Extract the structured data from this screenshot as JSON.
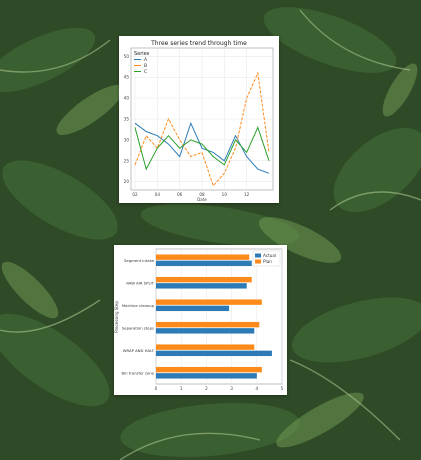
{
  "colors": {
    "blue": "#2c7bb6",
    "orange": "#ff8a1c",
    "green": "#2ca02c",
    "leaf_dark": "#23391d",
    "leaf_mid": "#3d6332",
    "leaf_light": "#6f9a57"
  },
  "chart_data": [
    {
      "type": "line",
      "title": "Three series trend through time",
      "xlabel": "Date",
      "ylabel": "",
      "x": [
        "02",
        "03",
        "04",
        "05",
        "06",
        "07",
        "08",
        "09",
        "10",
        "11",
        "12",
        "01",
        "02"
      ],
      "xticks": [
        "02",
        "04",
        "06",
        "08",
        "10",
        "12"
      ],
      "yticks": [
        20,
        25,
        30,
        35,
        40,
        45,
        50
      ],
      "ylim": [
        18,
        52
      ],
      "legend": {
        "title": "Series",
        "position": "top-left"
      },
      "series": [
        {
          "name": "A",
          "color": "#2c7bb6",
          "values": [
            34,
            32,
            31,
            29,
            26,
            34,
            28,
            27,
            25,
            31,
            26,
            23,
            22
          ]
        },
        {
          "name": "B",
          "color": "#ff8a1c",
          "values": [
            24,
            31,
            28,
            35,
            30,
            26,
            27,
            19,
            22,
            28,
            40,
            46,
            27
          ]
        },
        {
          "name": "C",
          "color": "#2ca02c",
          "values": [
            33,
            23,
            28,
            31,
            28,
            30,
            29,
            26,
            24,
            30,
            27,
            33,
            25
          ]
        }
      ],
      "grid": true
    },
    {
      "type": "bar",
      "orientation": "horizontal",
      "title": "",
      "ylabel": "Processing Step",
      "xlabel": "",
      "categories": [
        "Segment intake",
        "RAW AIR SPLIT",
        "Machine cleanup",
        "Separation steps",
        "WRAP AND HALT",
        "Bin transfer zone"
      ],
      "xlim": [
        0,
        5
      ],
      "xticks": [
        0,
        1,
        2,
        3,
        4,
        5
      ],
      "legend": {
        "position": "top-right"
      },
      "series": [
        {
          "name": "Actual",
          "color": "#2c7bb6",
          "values": [
            3.8,
            3.6,
            2.9,
            3.9,
            4.6,
            4.0
          ]
        },
        {
          "name": "Plan",
          "color": "#ff8a1c",
          "values": [
            3.7,
            3.8,
            4.2,
            4.1,
            3.9,
            4.2
          ]
        }
      ],
      "grid": true
    }
  ]
}
